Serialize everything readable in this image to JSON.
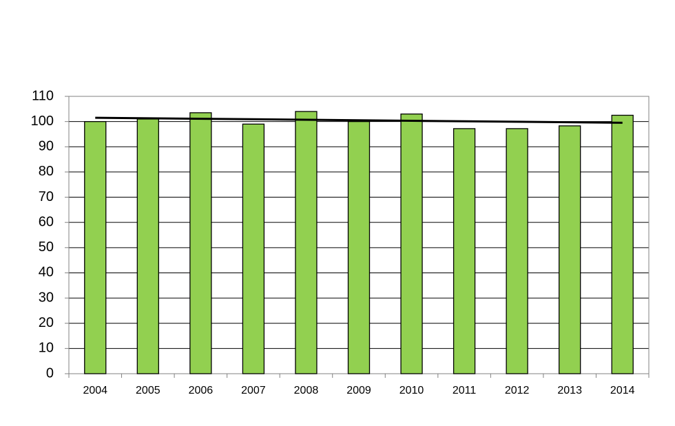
{
  "chart_data": {
    "type": "bar",
    "categories": [
      "2004",
      "2005",
      "2006",
      "2007",
      "2008",
      "2009",
      "2010",
      "2011",
      "2012",
      "2013",
      "2014"
    ],
    "values": [
      100,
      101,
      103.5,
      99,
      104,
      100,
      103,
      97.2,
      97.2,
      98.3,
      102.5
    ],
    "color": "#92d050",
    "ylim": [
      0,
      110
    ],
    "yticks": [
      0,
      10,
      20,
      30,
      40,
      50,
      60,
      70,
      80,
      90,
      100,
      110
    ],
    "grid": true,
    "trendline": true,
    "trendline_color": "#000000"
  }
}
